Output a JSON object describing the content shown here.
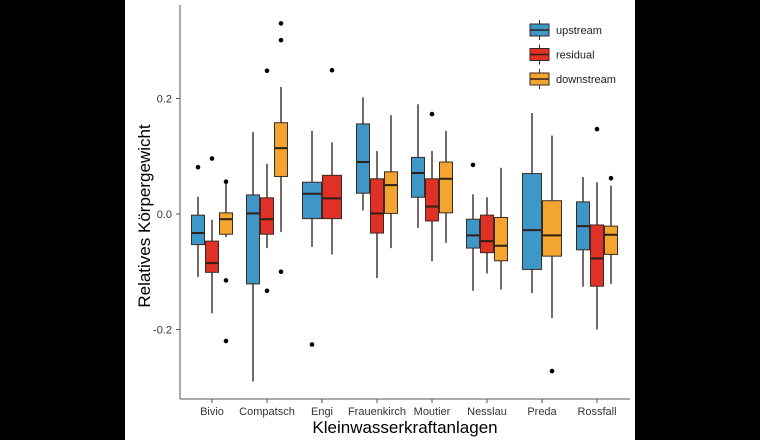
{
  "chart_data": {
    "type": "boxplot",
    "xlabel": "Kleinwasserkraftanlagen",
    "ylabel": "Relatives Körpergewicht",
    "ylim": [
      -0.32,
      0.37
    ],
    "yticks": [
      0.2,
      0.0,
      -0.2
    ],
    "ytick_labels": [
      "0.2",
      "0.0",
      "-0.2"
    ],
    "grid": false,
    "legend_position": "top-right",
    "categories": [
      "Bivio",
      "Compatsch",
      "Engi",
      "Frauenkirch",
      "Moutier",
      "Nesslau",
      "Preda",
      "Rossfall"
    ],
    "series": [
      {
        "name": "upstream",
        "color": "#3d97c9",
        "boxes": {
          "Bivio": {
            "low": -0.109,
            "q1": -0.053,
            "median": -0.033,
            "q3": -0.002,
            "high": 0.03,
            "outliers": [
              0.081
            ]
          },
          "Compatsch": {
            "low": -0.29,
            "q1": -0.121,
            "median": 0.001,
            "q3": 0.033,
            "high": 0.142,
            "outliers": []
          },
          "Engi": {
            "low": -0.057,
            "q1": -0.008,
            "median": 0.035,
            "q3": 0.055,
            "high": 0.144,
            "outliers": [
              -0.226
            ]
          },
          "Frauenkirch": {
            "low": 0.006,
            "q1": 0.036,
            "median": 0.09,
            "q3": 0.156,
            "high": 0.202,
            "outliers": []
          },
          "Moutier": {
            "low": -0.024,
            "q1": 0.029,
            "median": 0.071,
            "q3": 0.098,
            "high": 0.19,
            "outliers": []
          },
          "Nesslau": {
            "low": -0.133,
            "q1": -0.059,
            "median": -0.037,
            "q3": -0.009,
            "high": 0.034,
            "outliers": [
              0.085
            ]
          },
          "Preda": {
            "low": -0.137,
            "q1": -0.096,
            "median": -0.028,
            "q3": 0.07,
            "high": 0.175,
            "outliers": []
          },
          "Rossfall": {
            "low": -0.126,
            "q1": -0.062,
            "median": -0.021,
            "q3": 0.021,
            "high": 0.064,
            "outliers": []
          }
        }
      },
      {
        "name": "residual",
        "color": "#e03127",
        "boxes": {
          "Bivio": {
            "low": -0.172,
            "q1": -0.101,
            "median": -0.085,
            "q3": -0.047,
            "high": -0.01,
            "outliers": [
              0.096
            ]
          },
          "Compatsch": {
            "low": -0.059,
            "q1": -0.035,
            "median": -0.009,
            "q3": 0.028,
            "high": 0.087,
            "outliers": [
              0.248,
              -0.133
            ]
          },
          "Engi": {
            "low": -0.07,
            "q1": -0.008,
            "median": 0.027,
            "q3": 0.067,
            "high": 0.124,
            "outliers": [
              0.249
            ]
          },
          "Frauenkirch": {
            "low": -0.111,
            "q1": -0.033,
            "median": 0.001,
            "q3": 0.061,
            "high": 0.109,
            "outliers": []
          },
          "Moutier": {
            "low": -0.082,
            "q1": -0.012,
            "median": 0.013,
            "q3": 0.061,
            "high": 0.109,
            "outliers": [
              0.173
            ]
          },
          "Nesslau": {
            "low": -0.103,
            "q1": -0.067,
            "median": -0.047,
            "q3": -0.002,
            "high": 0.029,
            "outliers": []
          },
          "Rossfall": {
            "low": -0.2,
            "q1": -0.125,
            "median": -0.077,
            "q3": -0.019,
            "high": 0.055,
            "outliers": [
              0.147
            ]
          }
        }
      },
      {
        "name": "downstream",
        "color": "#f3a431",
        "boxes": {
          "Bivio": {
            "low": -0.04,
            "q1": -0.035,
            "median": -0.009,
            "q3": 0.002,
            "high": 0.053,
            "outliers": [
              0.056,
              -0.115,
              -0.22
            ]
          },
          "Compatsch": {
            "low": -0.031,
            "q1": 0.065,
            "median": 0.114,
            "q3": 0.158,
            "high": 0.22,
            "outliers": [
              0.33,
              0.301,
              -0.1
            ]
          },
          "Frauenkirch": {
            "low": -0.059,
            "q1": 0.001,
            "median": 0.05,
            "q3": 0.073,
            "high": 0.171,
            "outliers": []
          },
          "Moutier": {
            "low": -0.05,
            "q1": 0.002,
            "median": 0.061,
            "q3": 0.09,
            "high": 0.144,
            "outliers": []
          },
          "Nesslau": {
            "low": -0.131,
            "q1": -0.081,
            "median": -0.055,
            "q3": -0.006,
            "high": 0.08,
            "outliers": []
          },
          "Preda": {
            "low": -0.18,
            "q1": -0.073,
            "median": -0.037,
            "q3": 0.023,
            "high": 0.136,
            "outliers": [
              -0.272
            ]
          },
          "Rossfall": {
            "low": -0.121,
            "q1": -0.07,
            "median": -0.036,
            "q3": -0.021,
            "high": 0.049,
            "outliers": [
              0.062
            ]
          }
        }
      }
    ]
  }
}
